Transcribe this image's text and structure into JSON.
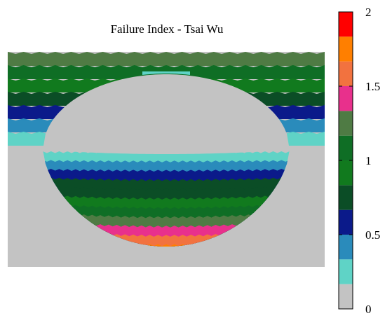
{
  "chart_data": {
    "type": "heatmap",
    "title": "Failure Index - Tsai Wu",
    "xlabel": "",
    "ylabel": "",
    "colorbar": {
      "range": [
        0,
        2
      ],
      "ticks": [
        {
          "value": 0,
          "label": "0"
        },
        {
          "value": 0.5,
          "label": "0.5"
        },
        {
          "value": 1,
          "label": "1"
        },
        {
          "value": 1.5,
          "label": "1.5"
        },
        {
          "value": 2,
          "label": "2"
        }
      ],
      "levels": [
        {
          "from": 0.0,
          "to": 0.1667,
          "color": "#c3c3c3"
        },
        {
          "from": 0.1667,
          "to": 0.3333,
          "color": "#5fd3c6"
        },
        {
          "from": 0.3333,
          "to": 0.5,
          "color": "#2a8bbb"
        },
        {
          "from": 0.5,
          "to": 0.6667,
          "color": "#0b1a8a"
        },
        {
          "from": 0.6667,
          "to": 0.8333,
          "color": "#0b4d26"
        },
        {
          "from": 0.8333,
          "to": 1.0,
          "color": "#117a1e"
        },
        {
          "from": 1.0,
          "to": 1.1667,
          "color": "#0f6e25"
        },
        {
          "from": 1.1667,
          "to": 1.3333,
          "color": "#4f7b44"
        },
        {
          "from": 1.3333,
          "to": 1.5,
          "color": "#e8308c"
        },
        {
          "from": 1.5,
          "to": 1.6667,
          "color": "#f2723f"
        },
        {
          "from": 1.6667,
          "to": 1.8333,
          "color": "#ff7f00"
        },
        {
          "from": 1.8333,
          "to": 2.0,
          "color": "#ff0000"
        }
      ]
    },
    "contour_bands_outer_top_down": [
      1.2,
      1.05,
      0.9,
      0.75,
      0.6,
      0.45,
      0.3
    ],
    "contour_bands_inner_top_down": [
      0.25,
      0.4,
      0.55,
      0.7,
      0.8,
      0.9,
      1.05,
      1.2,
      1.4,
      1.6,
      1.75
    ],
    "background_value": 0.05,
    "grid": false
  }
}
